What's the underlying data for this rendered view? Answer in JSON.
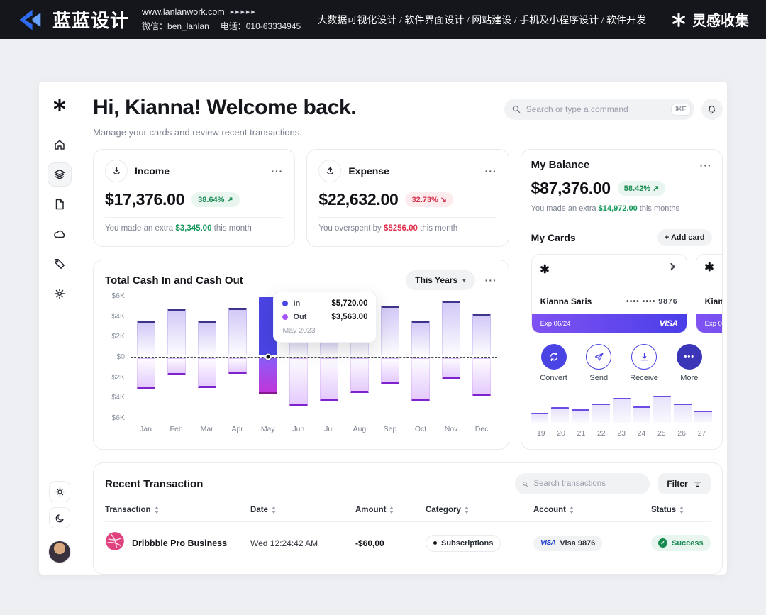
{
  "banner": {
    "brand": "蓝蓝设计",
    "url": "www.lanlanwork.com",
    "url_arrows": "▶▶▶▶▶",
    "wechat": "微信：ben_lanlan",
    "phone": "电话：010-63334945",
    "services": "大数据可视化设计 / 软件界面设计 / 网站建设 / 手机及小程序设计 / 软件开发",
    "collect": "灵感收集"
  },
  "icons": {
    "dots_menu": "···",
    "chevron_down": "▾",
    "arrow_up_right": "↗",
    "arrow_down_right": "↘",
    "check": "✓",
    "more_dots": "•••"
  },
  "header": {
    "title": "Hi, Kianna! Welcome back.",
    "subtitle": "Manage your cards and review recent transactions.",
    "search_placeholder": "Search or type a command",
    "shortcut": "⌘F"
  },
  "income": {
    "label": "Income",
    "amount": "$17,376.00",
    "badge": "38.64%",
    "note_prefix": "You made an extra ",
    "note_value": "$3,345.00",
    "note_suffix": " this month"
  },
  "expense": {
    "label": "Expense",
    "amount": "$22,632.00",
    "badge": "32.73%",
    "note_prefix": "You overspent by ",
    "note_value": "$5256.00",
    "note_suffix": " this month"
  },
  "balance": {
    "label": "My Balance",
    "amount": "$87,376.00",
    "badge": "58.42%",
    "note_prefix": "You made an extra ",
    "note_value": "$14,972.00",
    "note_suffix": " this months",
    "my_cards": "My Cards",
    "add_card": "+ Add card",
    "card": {
      "holder": "Kianna Saris",
      "mask": "•••• •••• 9876",
      "exp": "Exp 06/24",
      "brand": "VISA"
    },
    "actions": [
      "Convert",
      "Send",
      "Receive",
      "More"
    ],
    "mini_chart": {
      "days": [
        "19",
        "20",
        "21",
        "22",
        "23",
        "24",
        "25",
        "26",
        "27"
      ],
      "values": [
        30,
        48,
        42,
        60,
        78,
        52,
        85,
        60,
        38
      ]
    }
  },
  "chart_data": {
    "type": "bar",
    "title": "Total Cash In and Cash Out",
    "range_label": "This Years",
    "categories": [
      "Jan",
      "Feb",
      "Mar",
      "Apr",
      "May",
      "Jun",
      "Jul",
      "Aug",
      "Sep",
      "Oct",
      "Nov",
      "Dec"
    ],
    "series": [
      {
        "name": "In",
        "values": [
          3400,
          4600,
          3400,
          4700,
          5720,
          2600,
          2000,
          4400,
          4900,
          3400,
          5400,
          4100
        ]
      },
      {
        "name": "Out",
        "values": [
          3000,
          1700,
          2900,
          1500,
          3563,
          4700,
          4200,
          3400,
          2500,
          4200,
          2100,
          3700
        ]
      }
    ],
    "y_ticks": [
      "$6K",
      "$4K",
      "$2K",
      "$0",
      "$2K",
      "$4K",
      "$6K"
    ],
    "y_max": 6000,
    "highlight_index": 4,
    "tooltip": {
      "in_label": "In",
      "in_value": "$5,720.00",
      "out_label": "Out",
      "out_value": "$3,563.00",
      "period": "May 2023"
    }
  },
  "transactions": {
    "title": "Recent Transaction",
    "search_placeholder": "Search transactions",
    "filter": "Filter",
    "columns": [
      "Transaction",
      "Date",
      "Amount",
      "Category",
      "Account",
      "Status"
    ],
    "rows": [
      {
        "name": "Dribbble Pro Business",
        "date": "Wed 12:24:42 AM",
        "amount": "-$60,00",
        "category": "Subscriptions",
        "account_brand": "VISA",
        "account": "Visa 9876",
        "status": "Success"
      }
    ]
  },
  "colors": {
    "accent": "#4a44e4",
    "purple": "#a855f7",
    "green": "#178a50",
    "red": "#d93049",
    "banner_bg": "#14161c"
  }
}
